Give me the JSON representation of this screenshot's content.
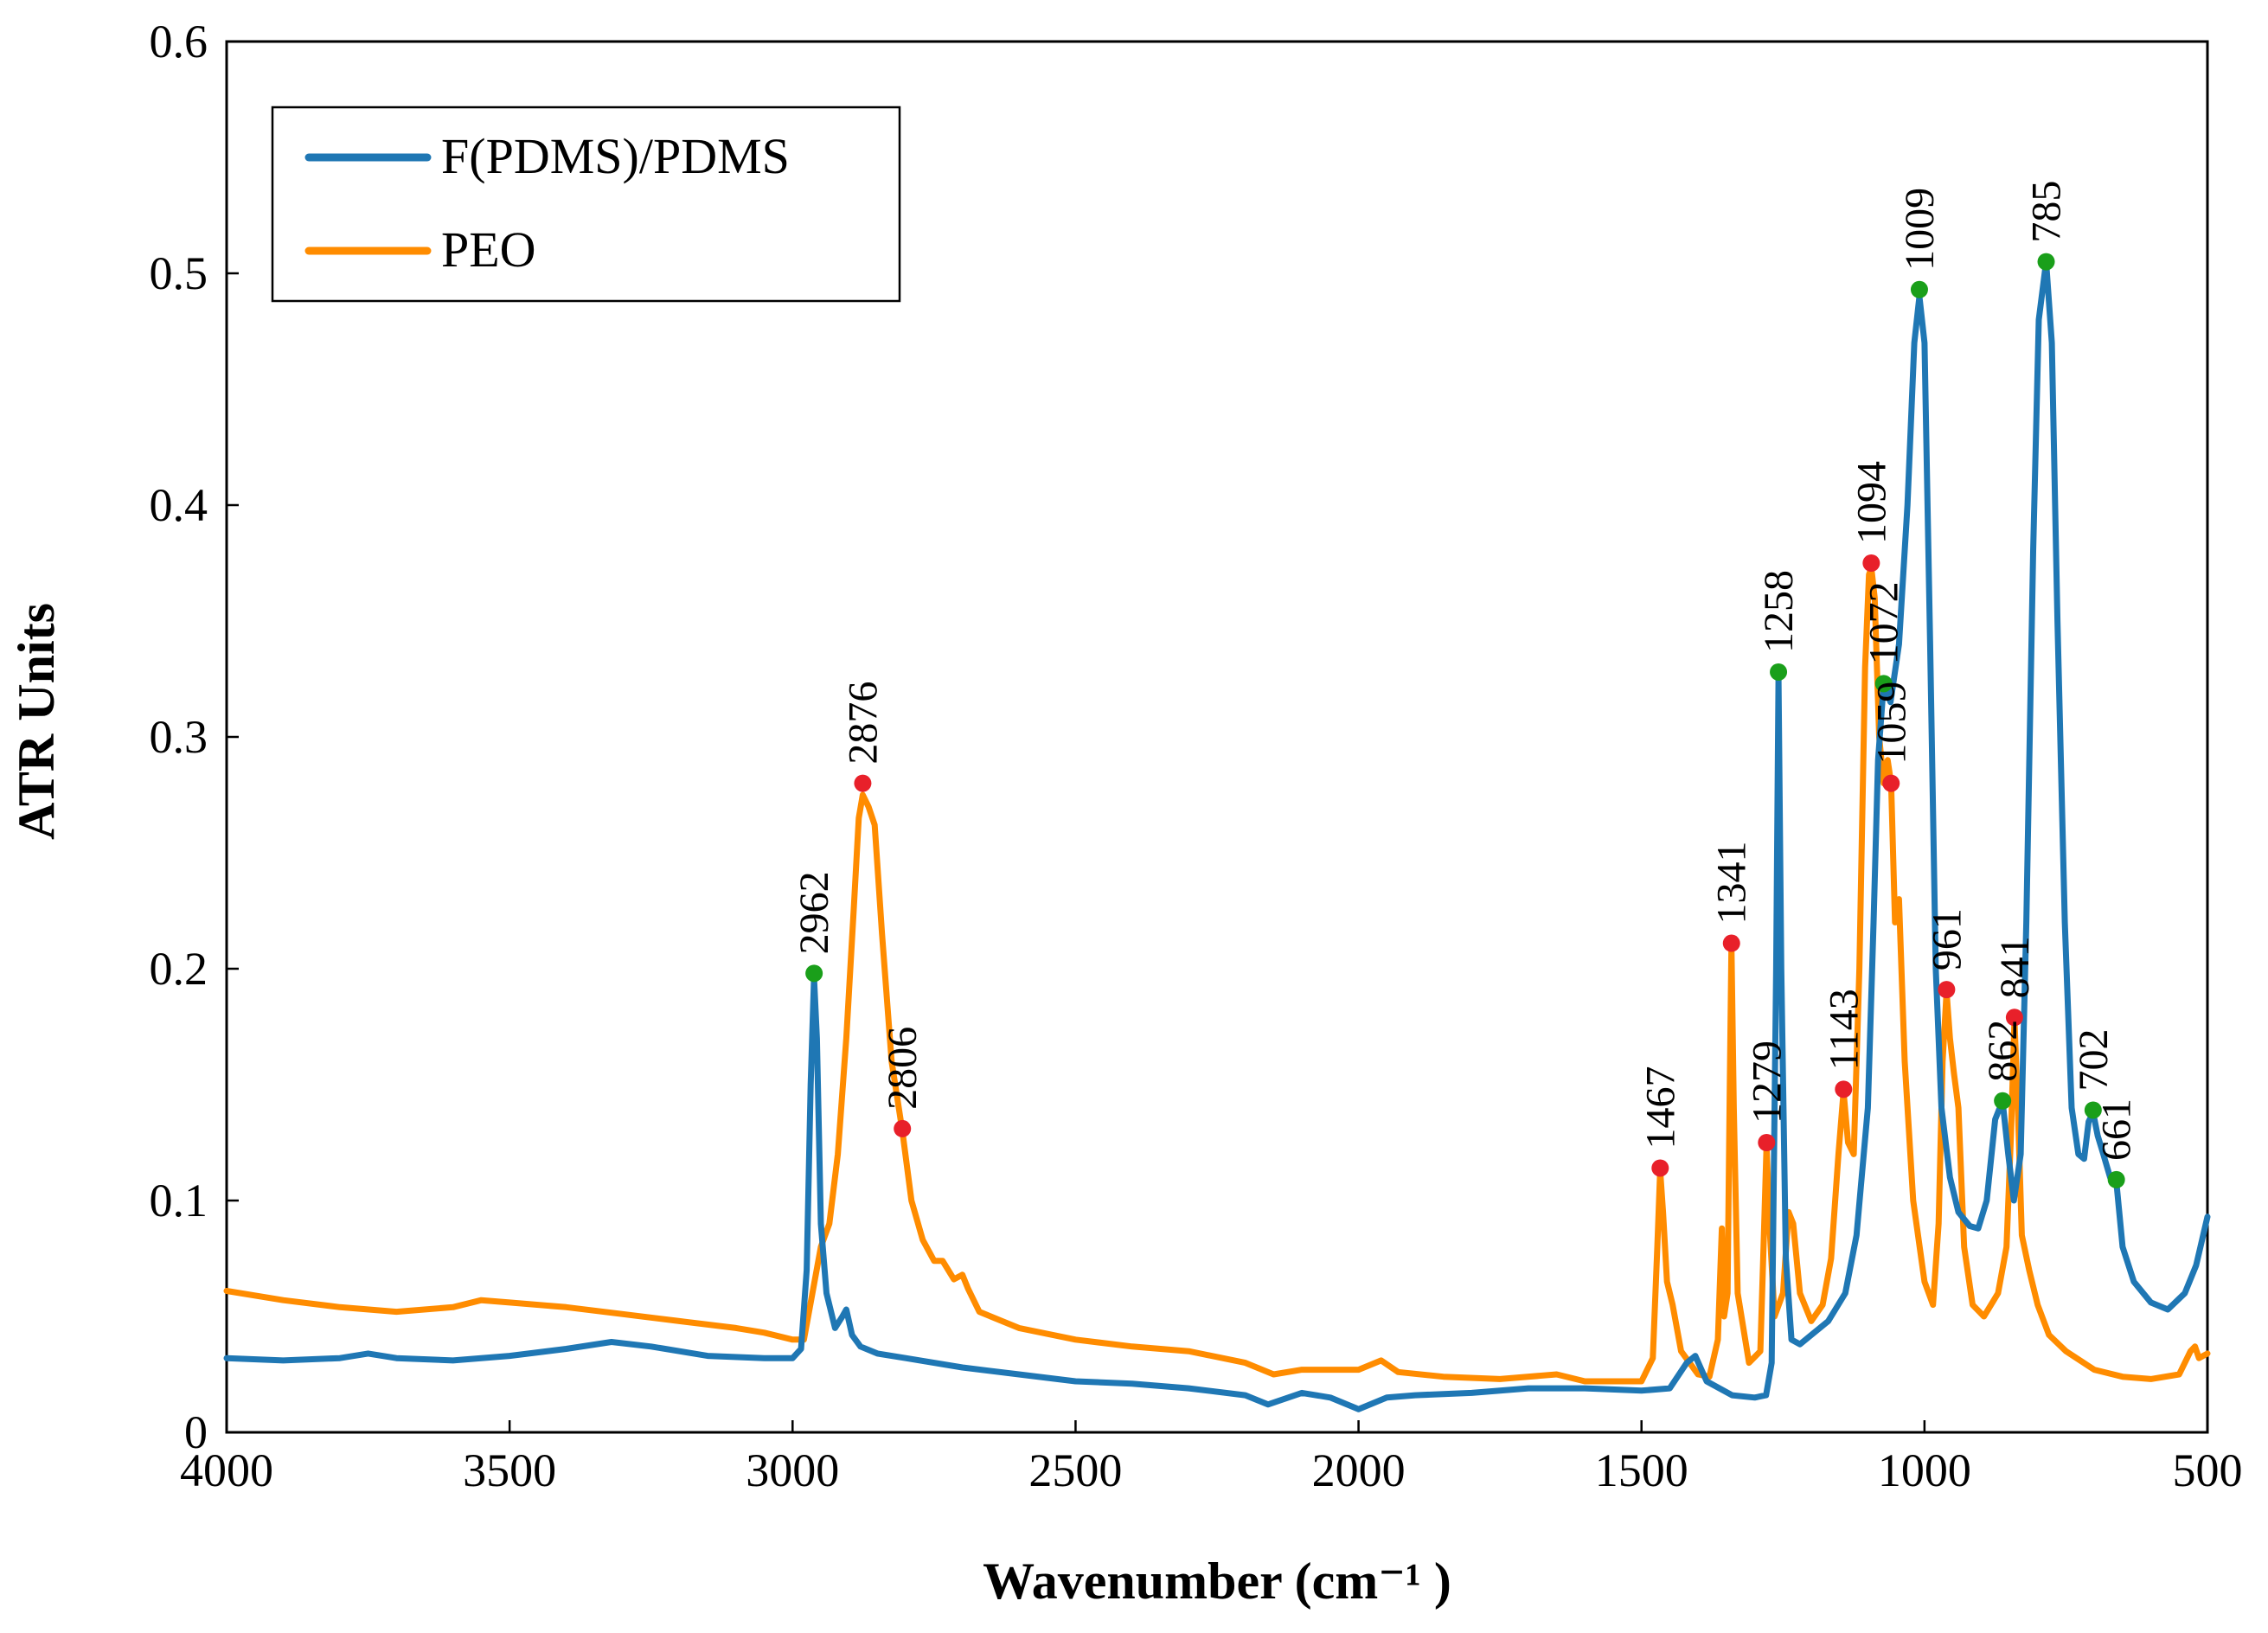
{
  "chart_data": {
    "type": "line",
    "title": "",
    "xlabel": "Wavenumber (cm⁻¹ )",
    "ylabel": "ATR Units",
    "xlim": [
      4000,
      500
    ],
    "ylim": [
      0,
      0.6
    ],
    "x_ticks": [
      4000,
      3500,
      3000,
      2500,
      2000,
      1500,
      1000,
      500
    ],
    "y_ticks": [
      0,
      0.1,
      0.2,
      0.3,
      0.4,
      0.5,
      0.6
    ],
    "y_tick_labels": [
      "0",
      "0.1",
      "0.2",
      "0.3",
      "0.4",
      "0.5",
      "0.6"
    ],
    "grid": false,
    "legend_position": "top-left",
    "series": [
      {
        "name": "F(PDMS)/PDMS",
        "color": "#1f77b4",
        "marker_color": "#1a9f1a",
        "points": [
          [
            4000,
            0.032
          ],
          [
            3900,
            0.031
          ],
          [
            3800,
            0.032
          ],
          [
            3750,
            0.034
          ],
          [
            3700,
            0.032
          ],
          [
            3600,
            0.031
          ],
          [
            3500,
            0.033
          ],
          [
            3400,
            0.036
          ],
          [
            3320,
            0.039
          ],
          [
            3250,
            0.037
          ],
          [
            3150,
            0.033
          ],
          [
            3050,
            0.032
          ],
          [
            3000,
            0.032
          ],
          [
            2985,
            0.036
          ],
          [
            2975,
            0.07
          ],
          [
            2968,
            0.15
          ],
          [
            2962,
            0.196
          ],
          [
            2957,
            0.17
          ],
          [
            2950,
            0.09
          ],
          [
            2940,
            0.06
          ],
          [
            2925,
            0.045
          ],
          [
            2912,
            0.05
          ],
          [
            2905,
            0.053
          ],
          [
            2895,
            0.042
          ],
          [
            2880,
            0.037
          ],
          [
            2850,
            0.034
          ],
          [
            2800,
            0.032
          ],
          [
            2700,
            0.028
          ],
          [
            2600,
            0.025
          ],
          [
            2500,
            0.022
          ],
          [
            2400,
            0.021
          ],
          [
            2300,
            0.019
          ],
          [
            2200,
            0.016
          ],
          [
            2160,
            0.012
          ],
          [
            2100,
            0.017
          ],
          [
            2050,
            0.015
          ],
          [
            2000,
            0.01
          ],
          [
            1950,
            0.015
          ],
          [
            1900,
            0.016
          ],
          [
            1800,
            0.017
          ],
          [
            1700,
            0.019
          ],
          [
            1600,
            0.019
          ],
          [
            1500,
            0.018
          ],
          [
            1450,
            0.019
          ],
          [
            1420,
            0.03
          ],
          [
            1405,
            0.033
          ],
          [
            1385,
            0.022
          ],
          [
            1340,
            0.016
          ],
          [
            1300,
            0.015
          ],
          [
            1280,
            0.016
          ],
          [
            1270,
            0.03
          ],
          [
            1262,
            0.2
          ],
          [
            1258,
            0.325
          ],
          [
            1253,
            0.2
          ],
          [
            1245,
            0.075
          ],
          [
            1235,
            0.04
          ],
          [
            1220,
            0.038
          ],
          [
            1200,
            0.042
          ],
          [
            1170,
            0.048
          ],
          [
            1140,
            0.06
          ],
          [
            1120,
            0.085
          ],
          [
            1100,
            0.14
          ],
          [
            1090,
            0.22
          ],
          [
            1082,
            0.29
          ],
          [
            1072,
            0.323
          ],
          [
            1060,
            0.315
          ],
          [
            1045,
            0.34
          ],
          [
            1030,
            0.4
          ],
          [
            1018,
            0.47
          ],
          [
            1009,
            0.49
          ],
          [
            1000,
            0.47
          ],
          [
            990,
            0.34
          ],
          [
            980,
            0.2
          ],
          [
            970,
            0.14
          ],
          [
            955,
            0.11
          ],
          [
            940,
            0.095
          ],
          [
            920,
            0.089
          ],
          [
            905,
            0.088
          ],
          [
            890,
            0.1
          ],
          [
            875,
            0.135
          ],
          [
            862,
            0.143
          ],
          [
            852,
            0.12
          ],
          [
            842,
            0.1
          ],
          [
            830,
            0.12
          ],
          [
            820,
            0.22
          ],
          [
            808,
            0.38
          ],
          [
            798,
            0.48
          ],
          [
            785,
            0.505
          ],
          [
            775,
            0.47
          ],
          [
            765,
            0.35
          ],
          [
            752,
            0.22
          ],
          [
            740,
            0.14
          ],
          [
            728,
            0.12
          ],
          [
            718,
            0.118
          ],
          [
            710,
            0.134
          ],
          [
            702,
            0.138
          ],
          [
            694,
            0.128
          ],
          [
            684,
            0.12
          ],
          [
            672,
            0.11
          ],
          [
            661,
            0.108
          ],
          [
            650,
            0.08
          ],
          [
            630,
            0.065
          ],
          [
            600,
            0.056
          ],
          [
            570,
            0.053
          ],
          [
            540,
            0.06
          ],
          [
            520,
            0.072
          ],
          [
            500,
            0.093
          ]
        ],
        "peaks": [
          2962,
          1258,
          1072,
          1009,
          862,
          785,
          702,
          661
        ],
        "peak_y": [
          0.198,
          0.328,
          0.323,
          0.493,
          0.143,
          0.505,
          0.139,
          0.109
        ]
      },
      {
        "name": "PEO",
        "color": "#ff8c00",
        "marker_color": "#e8202a",
        "points": [
          [
            4000,
            0.061
          ],
          [
            3900,
            0.057
          ],
          [
            3800,
            0.054
          ],
          [
            3700,
            0.052
          ],
          [
            3600,
            0.054
          ],
          [
            3550,
            0.057
          ],
          [
            3500,
            0.056
          ],
          [
            3400,
            0.054
          ],
          [
            3300,
            0.051
          ],
          [
            3200,
            0.048
          ],
          [
            3100,
            0.045
          ],
          [
            3050,
            0.043
          ],
          [
            3000,
            0.04
          ],
          [
            2980,
            0.04
          ],
          [
            2965,
            0.06
          ],
          [
            2950,
            0.08
          ],
          [
            2935,
            0.09
          ],
          [
            2920,
            0.12
          ],
          [
            2905,
            0.17
          ],
          [
            2892,
            0.225
          ],
          [
            2883,
            0.265
          ],
          [
            2876,
            0.275
          ],
          [
            2866,
            0.27
          ],
          [
            2855,
            0.262
          ],
          [
            2842,
            0.215
          ],
          [
            2825,
            0.16
          ],
          [
            2806,
            0.13
          ],
          [
            2790,
            0.1
          ],
          [
            2770,
            0.083
          ],
          [
            2750,
            0.074
          ],
          [
            2735,
            0.074
          ],
          [
            2715,
            0.066
          ],
          [
            2700,
            0.068
          ],
          [
            2690,
            0.062
          ],
          [
            2670,
            0.052
          ],
          [
            2600,
            0.045
          ],
          [
            2500,
            0.04
          ],
          [
            2400,
            0.037
          ],
          [
            2300,
            0.035
          ],
          [
            2200,
            0.03
          ],
          [
            2150,
            0.025
          ],
          [
            2100,
            0.027
          ],
          [
            2000,
            0.027
          ],
          [
            1960,
            0.031
          ],
          [
            1930,
            0.026
          ],
          [
            1850,
            0.024
          ],
          [
            1750,
            0.023
          ],
          [
            1650,
            0.025
          ],
          [
            1600,
            0.022
          ],
          [
            1500,
            0.022
          ],
          [
            1480,
            0.032
          ],
          [
            1472,
            0.08
          ],
          [
            1467,
            0.113
          ],
          [
            1462,
            0.095
          ],
          [
            1455,
            0.065
          ],
          [
            1445,
            0.055
          ],
          [
            1430,
            0.035
          ],
          [
            1400,
            0.025
          ],
          [
            1380,
            0.024
          ],
          [
            1365,
            0.04
          ],
          [
            1358,
            0.088
          ],
          [
            1354,
            0.05
          ],
          [
            1348,
            0.06
          ],
          [
            1344,
            0.15
          ],
          [
            1341,
            0.21
          ],
          [
            1337,
            0.14
          ],
          [
            1330,
            0.06
          ],
          [
            1310,
            0.03
          ],
          [
            1290,
            0.035
          ],
          [
            1285,
            0.075
          ],
          [
            1279,
            0.124
          ],
          [
            1274,
            0.09
          ],
          [
            1265,
            0.05
          ],
          [
            1250,
            0.06
          ],
          [
            1240,
            0.095
          ],
          [
            1232,
            0.09
          ],
          [
            1220,
            0.06
          ],
          [
            1200,
            0.048
          ],
          [
            1180,
            0.055
          ],
          [
            1165,
            0.075
          ],
          [
            1152,
            0.12
          ],
          [
            1143,
            0.147
          ],
          [
            1135,
            0.125
          ],
          [
            1125,
            0.12
          ],
          [
            1115,
            0.2
          ],
          [
            1105,
            0.33
          ],
          [
            1098,
            0.37
          ],
          [
            1094,
            0.373
          ],
          [
            1088,
            0.36
          ],
          [
            1080,
            0.3
          ],
          [
            1072,
            0.28
          ],
          [
            1065,
            0.29
          ],
          [
            1059,
            0.28
          ],
          [
            1052,
            0.22
          ],
          [
            1045,
            0.23
          ],
          [
            1035,
            0.16
          ],
          [
            1020,
            0.1
          ],
          [
            1000,
            0.065
          ],
          [
            985,
            0.055
          ],
          [
            975,
            0.09
          ],
          [
            968,
            0.16
          ],
          [
            961,
            0.19
          ],
          [
            955,
            0.17
          ],
          [
            948,
            0.155
          ],
          [
            940,
            0.14
          ],
          [
            930,
            0.08
          ],
          [
            915,
            0.055
          ],
          [
            895,
            0.05
          ],
          [
            870,
            0.06
          ],
          [
            855,
            0.08
          ],
          [
            847,
            0.13
          ],
          [
            841,
            0.178
          ],
          [
            835,
            0.14
          ],
          [
            828,
            0.085
          ],
          [
            815,
            0.07
          ],
          [
            800,
            0.055
          ],
          [
            780,
            0.042
          ],
          [
            750,
            0.035
          ],
          [
            700,
            0.027
          ],
          [
            650,
            0.024
          ],
          [
            600,
            0.023
          ],
          [
            550,
            0.025
          ],
          [
            530,
            0.035
          ],
          [
            522,
            0.037
          ],
          [
            515,
            0.032
          ],
          [
            500,
            0.034
          ]
        ],
        "peaks": [
          2876,
          2806,
          1467,
          1341,
          1279,
          1143,
          1094,
          1059,
          961,
          841
        ],
        "peak_y": [
          0.28,
          0.131,
          0.114,
          0.211,
          0.125,
          0.148,
          0.375,
          0.28,
          0.191,
          0.179
        ]
      }
    ]
  }
}
